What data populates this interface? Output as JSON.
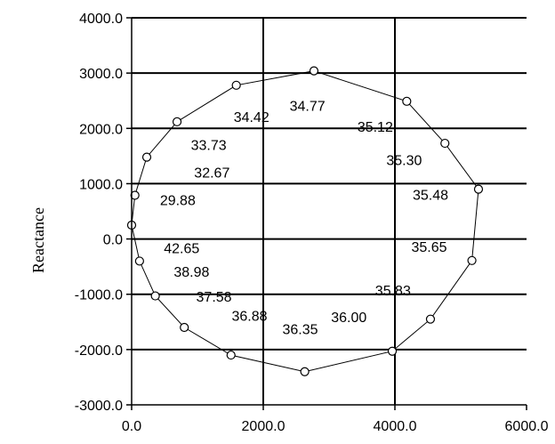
{
  "chart_data": {
    "type": "scatter",
    "title": "",
    "xlabel": "",
    "ylabel": "Reactance",
    "xlim": [
      0,
      6000
    ],
    "ylim": [
      -3000,
      4000
    ],
    "grid": true,
    "xticks": [
      0,
      2000,
      4000,
      6000
    ],
    "xtick_labels": [
      "0.0",
      "2000.0",
      "4000.0",
      "6000.0"
    ],
    "yticks": [
      4000,
      3000,
      2000,
      1000,
      0,
      -1000,
      -2000,
      -3000
    ],
    "ytick_labels": [
      "4000.0",
      "3000.0",
      "2000.0",
      "1000.0",
      "0.0",
      "-1000.0",
      "-2000.0",
      "-3000.0"
    ],
    "series": [
      {
        "marker": "circle-open",
        "points": [
          [
            2770,
            3040
          ],
          [
            4180,
            2490
          ],
          [
            4760,
            1730
          ],
          [
            5270,
            900
          ],
          [
            5170,
            -390
          ],
          [
            4540,
            -1450
          ],
          [
            3960,
            -2030
          ],
          [
            2630,
            -2400
          ],
          [
            1510,
            -2100
          ],
          [
            800,
            -1600
          ],
          [
            360,
            -1030
          ],
          [
            120,
            -400
          ],
          [
            0,
            250
          ],
          [
            50,
            790
          ],
          [
            230,
            1480
          ],
          [
            690,
            2120
          ],
          [
            1590,
            2780
          ]
        ]
      }
    ],
    "annotations": [
      {
        "text": "34.77",
        "x": 2400,
        "y": 2320
      },
      {
        "text": "34.42",
        "x": 1550,
        "y": 2120
      },
      {
        "text": "35.12",
        "x": 3430,
        "y": 1940
      },
      {
        "text": "33.73",
        "x": 900,
        "y": 1610
      },
      {
        "text": "35.30",
        "x": 3870,
        "y": 1340
      },
      {
        "text": "32.67",
        "x": 950,
        "y": 1110
      },
      {
        "text": "35.48",
        "x": 4270,
        "y": 710
      },
      {
        "text": "29.88",
        "x": 430,
        "y": 610
      },
      {
        "text": "42.65",
        "x": 490,
        "y": -260
      },
      {
        "text": "35.65",
        "x": 4250,
        "y": -230
      },
      {
        "text": "38.98",
        "x": 640,
        "y": -680
      },
      {
        "text": "35.83",
        "x": 3700,
        "y": -1020
      },
      {
        "text": "37.58",
        "x": 980,
        "y": -1130
      },
      {
        "text": "36.00",
        "x": 3030,
        "y": -1500
      },
      {
        "text": "36.88",
        "x": 1520,
        "y": -1480
      },
      {
        "text": "36.35",
        "x": 2290,
        "y": -1720
      }
    ]
  }
}
